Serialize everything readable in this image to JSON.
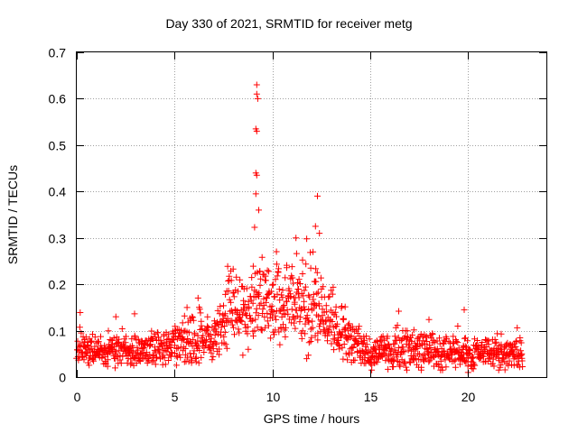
{
  "chart_data": {
    "type": "scatter",
    "title": "Day 330 of 2021, SRMTID for receiver metg",
    "xlabel": "GPS time / hours",
    "ylabel": "SRMTID / TECUs",
    "xlim": [
      0,
      24
    ],
    "ylim": [
      0,
      0.7
    ],
    "x_ticks": [
      "0",
      "5",
      "10",
      "15",
      "20"
    ],
    "y_ticks": [
      "0",
      "0.1",
      "0.2",
      "0.3",
      "0.4",
      "0.5",
      "0.6",
      "0.7"
    ],
    "grid": true,
    "marker": "+",
    "color": "#ff0000",
    "x_range_of_data": [
      0,
      22.8
    ],
    "notable_points": [
      {
        "x": 9.2,
        "y": 0.63
      },
      {
        "x": 9.2,
        "y": 0.61
      },
      {
        "x": 9.25,
        "y": 0.6
      },
      {
        "x": 9.15,
        "y": 0.535
      },
      {
        "x": 9.2,
        "y": 0.53
      },
      {
        "x": 9.15,
        "y": 0.44
      },
      {
        "x": 9.2,
        "y": 0.435
      },
      {
        "x": 9.15,
        "y": 0.395
      },
      {
        "x": 9.3,
        "y": 0.36
      },
      {
        "x": 12.3,
        "y": 0.39
      },
      {
        "x": 12.2,
        "y": 0.325
      },
      {
        "x": 12.4,
        "y": 0.31
      },
      {
        "x": 11.2,
        "y": 0.3
      },
      {
        "x": 2.0,
        "y": 0.13
      },
      {
        "x": 19.8,
        "y": 0.145
      },
      {
        "x": 20.0,
        "y": 0.01
      }
    ],
    "envelope": [
      {
        "x": 0,
        "base": 0.06,
        "spread": 0.03
      },
      {
        "x": 2,
        "base": 0.055,
        "spread": 0.03
      },
      {
        "x": 4,
        "base": 0.06,
        "spread": 0.03
      },
      {
        "x": 5.5,
        "base": 0.07,
        "spread": 0.04
      },
      {
        "x": 6,
        "base": 0.09,
        "spread": 0.06
      },
      {
        "x": 7,
        "base": 0.08,
        "spread": 0.04
      },
      {
        "x": 7.8,
        "base": 0.15,
        "spread": 0.08
      },
      {
        "x": 8.5,
        "base": 0.12,
        "spread": 0.07
      },
      {
        "x": 9.2,
        "base": 0.18,
        "spread": 0.08
      },
      {
        "x": 10,
        "base": 0.16,
        "spread": 0.08
      },
      {
        "x": 11,
        "base": 0.17,
        "spread": 0.09
      },
      {
        "x": 12,
        "base": 0.15,
        "spread": 0.09
      },
      {
        "x": 13,
        "base": 0.12,
        "spread": 0.07
      },
      {
        "x": 14,
        "base": 0.08,
        "spread": 0.05
      },
      {
        "x": 15,
        "base": 0.05,
        "spread": 0.03
      },
      {
        "x": 17,
        "base": 0.06,
        "spread": 0.04
      },
      {
        "x": 19,
        "base": 0.055,
        "spread": 0.035
      },
      {
        "x": 21,
        "base": 0.05,
        "spread": 0.03
      },
      {
        "x": 22.8,
        "base": 0.05,
        "spread": 0.03
      }
    ]
  }
}
